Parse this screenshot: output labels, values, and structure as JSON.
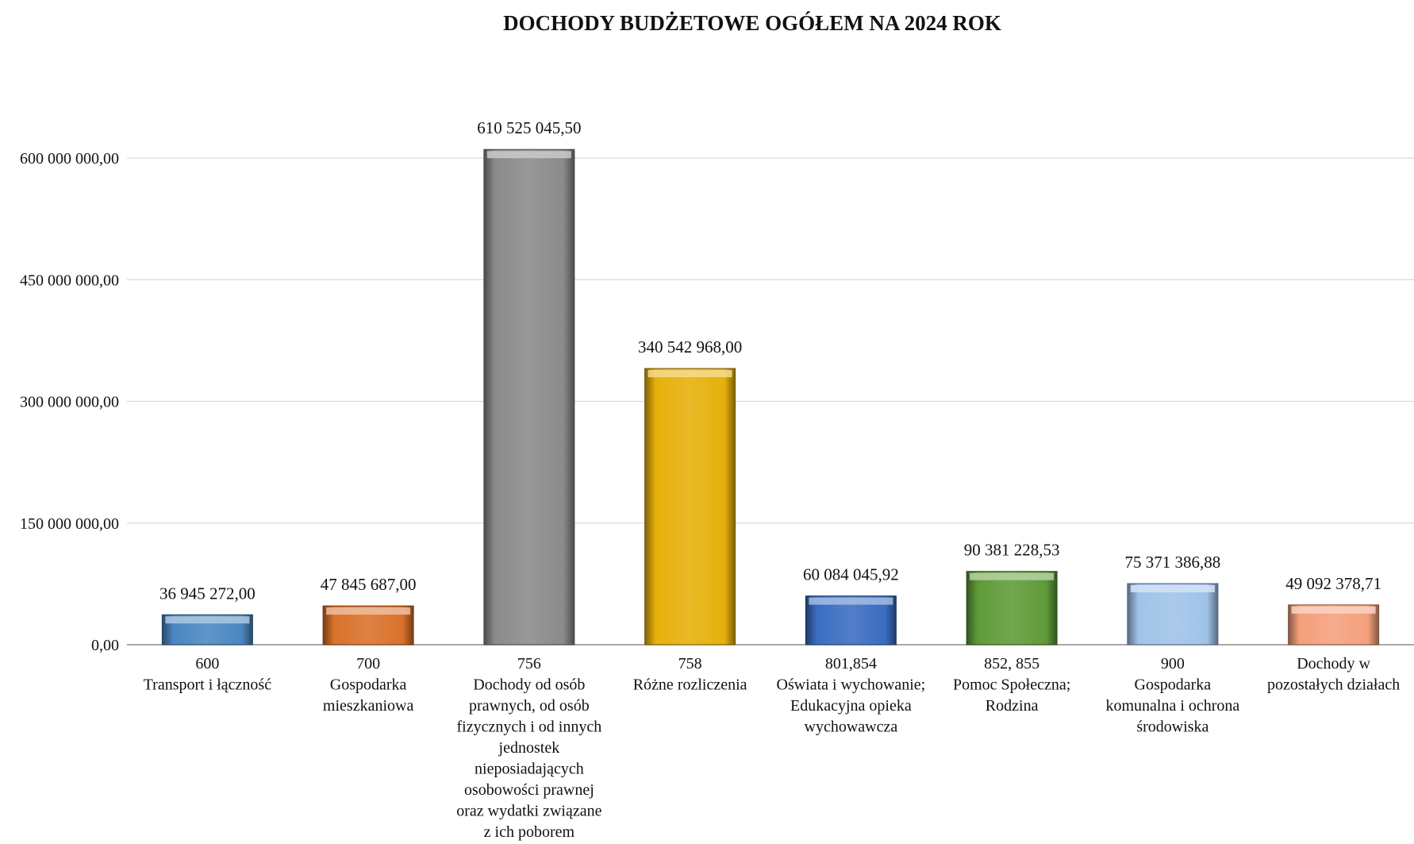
{
  "chart_data": {
    "type": "bar",
    "title": "DOCHODY BUDŻETOWE OGÓŁEM NA 2024 ROK",
    "xlabel": "",
    "ylabel": "",
    "ylim": [
      0,
      650000000
    ],
    "y_ticks": [
      0,
      150000000,
      300000000,
      450000000,
      600000000
    ],
    "y_tick_labels": [
      "0,00",
      "150 000 000,00",
      "300 000 000,00",
      "450 000 000,00",
      "600 000 000,00"
    ],
    "grid": true,
    "legend": "none",
    "categories": [
      "600 Transport i łączność",
      "700 Gospodarka mieszkaniowa",
      "756 Dochody od osób prawnych, od osób fizycznych i od innych jednostek nieposiadających osobowości prawnej oraz wydatki związane z ich poborem",
      "758 Różne rozliczenia",
      "801,854 Oświata i wychowanie; Edukacyjna opieka wychowawcza",
      "852, 855 Pomoc Społeczna; Rodzina",
      "900 Gospodarka komunalna i ochrona środowiska",
      "Dochody w pozostałych działach"
    ],
    "category_lines": [
      [
        "600",
        "Transport i łączność"
      ],
      [
        "700",
        "Gospodarka",
        "mieszkaniowa"
      ],
      [
        "756",
        "Dochody od osób",
        "prawnych, od osób",
        "fizycznych i od innych",
        "jednostek",
        "nieposiadających",
        "osobowości prawnej",
        "oraz wydatki związane",
        "z ich poborem"
      ],
      [
        "758",
        "Różne rozliczenia"
      ],
      [
        "801,854",
        "Oświata i wychowanie;",
        "Edukacyjna opieka",
        "wychowawcza"
      ],
      [
        "852, 855",
        "Pomoc Społeczna;",
        "Rodzina"
      ],
      [
        "900",
        "Gospodarka",
        "komunalna i ochrona",
        "środowiska"
      ],
      [
        "Dochody w",
        "pozostałych działach"
      ]
    ],
    "values": [
      36945272.0,
      47845687.0,
      610525045.5,
      340542968.0,
      60084045.92,
      90381228.53,
      75371386.88,
      49092378.71
    ],
    "value_labels": [
      "36 945 272,00",
      "47 845 687,00",
      "610 525 045,50",
      "340 542 968,00",
      "60 084 045,92",
      "90 381 228,53",
      "75 371 386,88",
      "49 092 378,71"
    ],
    "colors": [
      "#4a86c0",
      "#d9712a",
      "#8a8a8a",
      "#e6b00a",
      "#3a6cc0",
      "#5f9a38",
      "#9fc3e8",
      "#f4a07c"
    ]
  }
}
